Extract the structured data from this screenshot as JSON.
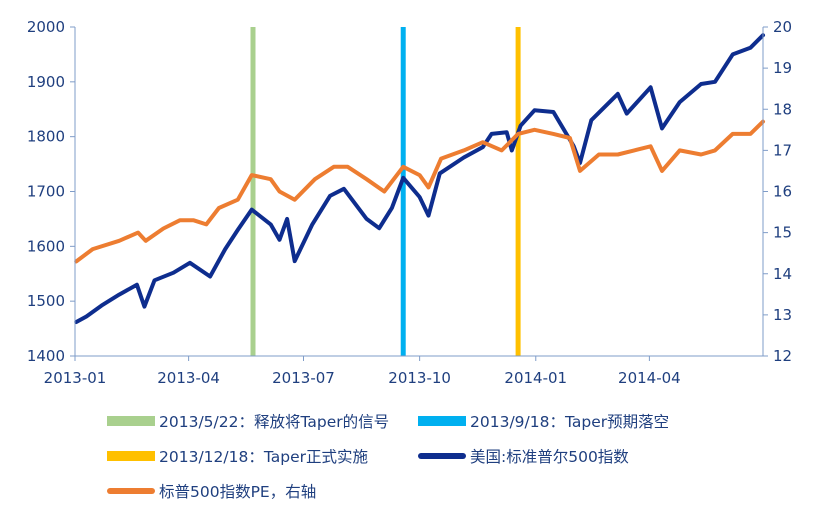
{
  "chart_data": {
    "type": "line",
    "x_axis": {
      "ticks": [
        {
          "date": "2013-01-01",
          "label": "2013-01"
        },
        {
          "date": "2013-04-01",
          "label": "2013-04"
        },
        {
          "date": "2013-07-01",
          "label": "2013-07"
        },
        {
          "date": "2013-10-01",
          "label": "2013-10"
        },
        {
          "date": "2014-01-01",
          "label": "2014-01"
        },
        {
          "date": "2014-04-01",
          "label": "2014-04"
        }
      ],
      "range": [
        "2013-01-01",
        "2014-06-30"
      ]
    },
    "y_left": {
      "min": 1400,
      "max": 2000,
      "ticks": [
        "1400",
        "1500",
        "1600",
        "1700",
        "1800",
        "1900",
        "2000"
      ]
    },
    "y_right": {
      "min": 12,
      "max": 20,
      "ticks": [
        "12",
        "13",
        "14",
        "15",
        "16",
        "17",
        "18",
        "19",
        "20"
      ]
    },
    "grid": false,
    "events": [
      {
        "date": "2013-05-22",
        "color": "#a9d08e",
        "label": "2013/5/22：释放将Taper的信号"
      },
      {
        "date": "2013-09-18",
        "color": "#00b0f0",
        "label": "2013/9/18：Taper预期落空"
      },
      {
        "date": "2013-12-18",
        "color": "#ffc000",
        "label": "2013/12/18：Taper正式实施"
      }
    ],
    "series": [
      {
        "name": "美国:标准普尔500指数",
        "axis": "left",
        "color": "#0e2d8e",
        "points": [
          [
            "2013-01-02",
            1462
          ],
          [
            "2013-01-10",
            1472
          ],
          [
            "2013-01-22",
            1492
          ],
          [
            "2013-02-05",
            1512
          ],
          [
            "2013-02-19",
            1530
          ],
          [
            "2013-02-25",
            1490
          ],
          [
            "2013-03-05",
            1538
          ],
          [
            "2013-03-20",
            1552
          ],
          [
            "2013-04-02",
            1570
          ],
          [
            "2013-04-18",
            1545
          ],
          [
            "2013-04-30",
            1595
          ],
          [
            "2013-05-10",
            1630
          ],
          [
            "2013-05-21",
            1667
          ],
          [
            "2013-06-05",
            1640
          ],
          [
            "2013-06-12",
            1612
          ],
          [
            "2013-06-18",
            1650
          ],
          [
            "2013-06-24",
            1573
          ],
          [
            "2013-07-08",
            1640
          ],
          [
            "2013-07-22",
            1692
          ],
          [
            "2013-08-02",
            1705
          ],
          [
            "2013-08-20",
            1650
          ],
          [
            "2013-08-30",
            1633
          ],
          [
            "2013-09-09",
            1670
          ],
          [
            "2013-09-18",
            1725
          ],
          [
            "2013-10-01",
            1690
          ],
          [
            "2013-10-08",
            1656
          ],
          [
            "2013-10-17",
            1733
          ],
          [
            "2013-11-05",
            1762
          ],
          [
            "2013-11-20",
            1781
          ],
          [
            "2013-11-27",
            1805
          ],
          [
            "2013-12-09",
            1808
          ],
          [
            "2013-12-13",
            1775
          ],
          [
            "2013-12-20",
            1820
          ],
          [
            "2013-12-31",
            1848
          ],
          [
            "2014-01-15",
            1845
          ],
          [
            "2014-01-31",
            1783
          ],
          [
            "2014-02-05",
            1752
          ],
          [
            "2014-02-14",
            1830
          ],
          [
            "2014-03-07",
            1878
          ],
          [
            "2014-03-14",
            1842
          ],
          [
            "2014-04-02",
            1890
          ],
          [
            "2014-04-11",
            1815
          ],
          [
            "2014-04-25",
            1863
          ],
          [
            "2014-05-12",
            1896
          ],
          [
            "2014-05-23",
            1900
          ],
          [
            "2014-06-06",
            1950
          ],
          [
            "2014-06-20",
            1962
          ],
          [
            "2014-06-30",
            1985
          ]
        ]
      },
      {
        "name": "标普500指数PE，右轴",
        "axis": "right",
        "color": "#ed7d31",
        "points": [
          [
            "2013-01-02",
            14.3
          ],
          [
            "2013-01-15",
            14.6
          ],
          [
            "2013-02-05",
            14.8
          ],
          [
            "2013-02-20",
            15.0
          ],
          [
            "2013-02-26",
            14.8
          ],
          [
            "2013-03-12",
            15.1
          ],
          [
            "2013-03-25",
            15.3
          ],
          [
            "2013-04-05",
            15.3
          ],
          [
            "2013-04-15",
            15.2
          ],
          [
            "2013-04-25",
            15.6
          ],
          [
            "2013-05-10",
            15.8
          ],
          [
            "2013-05-21",
            16.4
          ],
          [
            "2013-06-05",
            16.3
          ],
          [
            "2013-06-12",
            16.0
          ],
          [
            "2013-06-24",
            15.8
          ],
          [
            "2013-07-10",
            16.3
          ],
          [
            "2013-07-25",
            16.6
          ],
          [
            "2013-08-05",
            16.6
          ],
          [
            "2013-08-20",
            16.3
          ],
          [
            "2013-09-03",
            16.0
          ],
          [
            "2013-09-18",
            16.6
          ],
          [
            "2013-10-01",
            16.4
          ],
          [
            "2013-10-08",
            16.1
          ],
          [
            "2013-10-18",
            16.8
          ],
          [
            "2013-11-05",
            17.0
          ],
          [
            "2013-11-20",
            17.2
          ],
          [
            "2013-12-05",
            17.0
          ],
          [
            "2013-12-18",
            17.4
          ],
          [
            "2013-12-31",
            17.5
          ],
          [
            "2014-01-15",
            17.4
          ],
          [
            "2014-01-28",
            17.3
          ],
          [
            "2014-02-05",
            16.5
          ],
          [
            "2014-02-20",
            16.9
          ],
          [
            "2014-03-07",
            16.9
          ],
          [
            "2014-03-20",
            17.0
          ],
          [
            "2014-04-02",
            17.1
          ],
          [
            "2014-04-11",
            16.5
          ],
          [
            "2014-04-25",
            17.0
          ],
          [
            "2014-05-12",
            16.9
          ],
          [
            "2014-05-23",
            17.0
          ],
          [
            "2014-06-06",
            17.4
          ],
          [
            "2014-06-20",
            17.4
          ],
          [
            "2014-06-30",
            17.7
          ]
        ]
      }
    ],
    "legend_placement": "bottom"
  }
}
